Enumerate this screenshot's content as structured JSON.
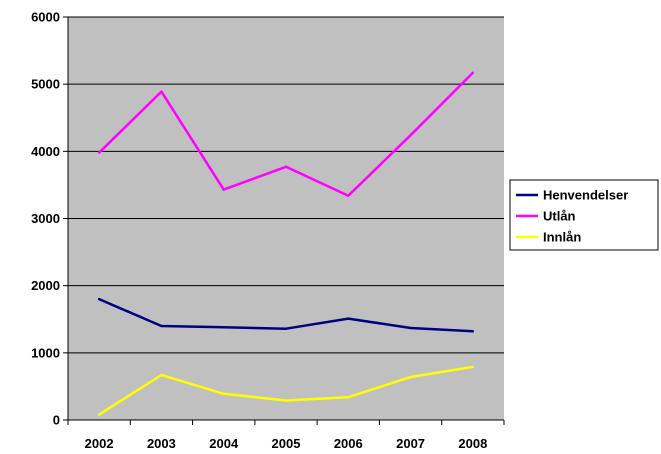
{
  "chart_data": {
    "type": "line",
    "title": "",
    "xlabel": "",
    "ylabel": "",
    "categories": [
      "2002",
      "2003",
      "2004",
      "2005",
      "2006",
      "2007",
      "2008"
    ],
    "ylim": [
      0,
      6000
    ],
    "yticks": [
      0,
      1000,
      2000,
      3000,
      4000,
      5000,
      6000
    ],
    "grid": true,
    "plot_background": "#c0c0c0",
    "legend_position": "right",
    "series": [
      {
        "name": "Henvendelser",
        "color": "#000080",
        "values": [
          1800,
          1400,
          1380,
          1360,
          1510,
          1370,
          1320
        ]
      },
      {
        "name": "Utlån",
        "color": "#ff00ff",
        "values": [
          3980,
          4890,
          3430,
          3770,
          3340,
          4240,
          5170
        ]
      },
      {
        "name": "Innlån",
        "color": "#ffff00",
        "values": [
          80,
          670,
          390,
          290,
          340,
          640,
          790
        ]
      }
    ]
  }
}
